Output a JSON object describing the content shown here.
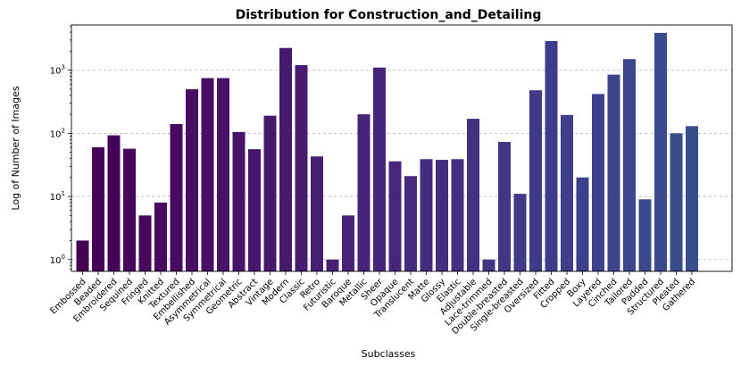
{
  "chart_data": {
    "type": "bar",
    "title": "Distribution for Construction_and_Detailing",
    "xlabel": "Subclasses",
    "ylabel": "Log of Number of Images",
    "yscale": "log",
    "ylim": [
      0.65,
      5200
    ],
    "grid": "y-major dashed",
    "yticks": [
      1,
      10,
      100,
      1000
    ],
    "ytick_labels": [
      {
        "base": "10",
        "exp": "0"
      },
      {
        "base": "10",
        "exp": "1"
      },
      {
        "base": "10",
        "exp": "2"
      },
      {
        "base": "10",
        "exp": "3"
      }
    ],
    "categories": [
      "Embossed",
      "Beaded",
      "Embroidered",
      "Sequined",
      "Fringed",
      "Knitted",
      "Textured",
      "Embellished",
      "Asymmetrical",
      "Symmetrical",
      "Geometric",
      "Abstract",
      "Vintage",
      "Modern",
      "Classic",
      "Retro",
      "Futuristic",
      "Baroque",
      "Metallic",
      "Sheer",
      "Opaque",
      "Translucent",
      "Matte",
      "Glossy",
      "Elastic",
      "Adjustable",
      "Lace-trimmed",
      "Double-breasted",
      "Single-breasted",
      "Oversized",
      "Fitted",
      "Cropped",
      "Boxy",
      "Layered",
      "Cinched",
      "Tailored",
      "Padded",
      "Structured",
      "Pleated",
      "Gathered"
    ],
    "values": [
      2,
      60,
      93,
      57,
      5,
      8,
      140,
      500,
      750,
      750,
      105,
      56,
      190,
      2250,
      1200,
      43,
      1,
      5,
      200,
      1100,
      36,
      21,
      39,
      38,
      39,
      170,
      1,
      73,
      11,
      480,
      2900,
      195,
      20,
      420,
      850,
      1500,
      9,
      3900,
      100,
      130
    ],
    "colors": [
      "#440154",
      "#450256",
      "#460458",
      "#46065a",
      "#47085c",
      "#470a5e",
      "#470c60",
      "#480e62",
      "#481065",
      "#481267",
      "#481469",
      "#48166b",
      "#48186d",
      "#481a6e",
      "#481c70",
      "#471e72",
      "#472074",
      "#472276",
      "#462478",
      "#46267a",
      "#46287b",
      "#452a7d",
      "#452c7e",
      "#442e80",
      "#443081",
      "#433283",
      "#433484",
      "#423685",
      "#413887",
      "#403a88",
      "#403c89",
      "#3f3e8a",
      "#3e408b",
      "#3e428c",
      "#3d448c",
      "#3c468d",
      "#3b488d",
      "#3b4a8d",
      "#3a4c8c",
      "#394e8c"
    ]
  }
}
